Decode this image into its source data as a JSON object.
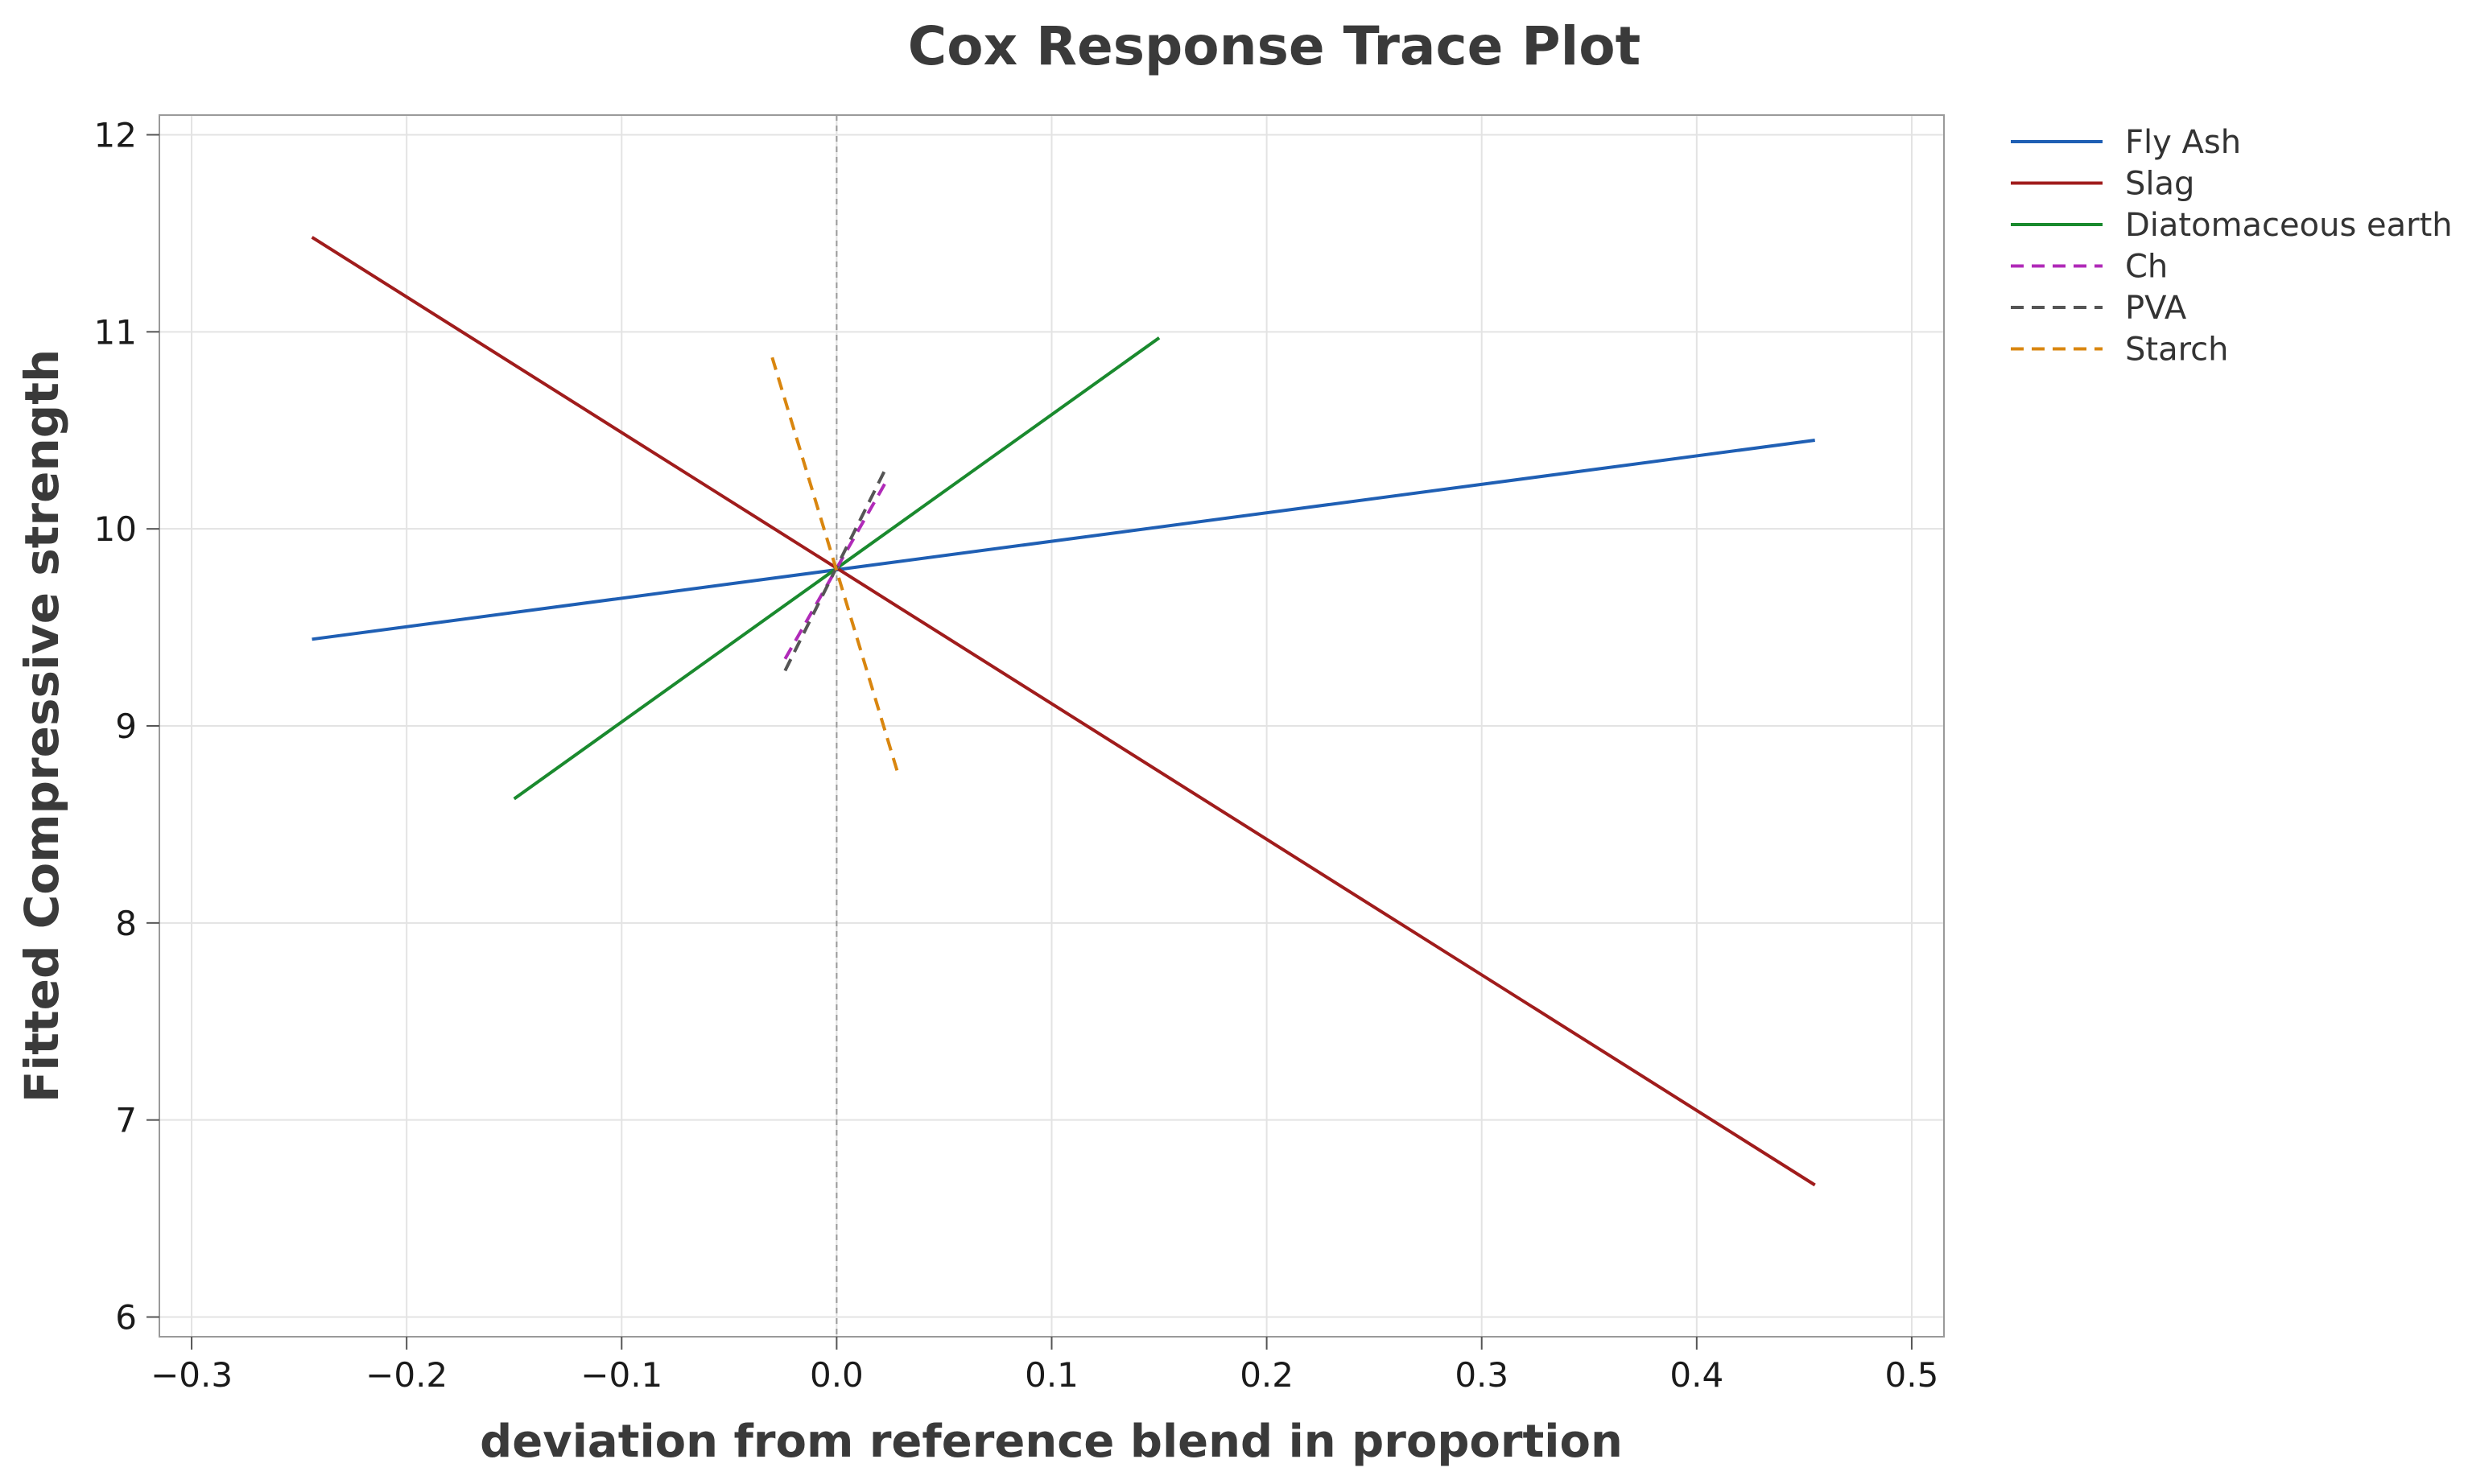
{
  "chart_data": {
    "type": "line",
    "title": "Cox Response Trace Plot",
    "xlabel": "deviation from reference blend in proportion",
    "ylabel": "Fitted Compressive strength",
    "xlim": [
      -0.315,
      0.515
    ],
    "ylim": [
      5.9,
      12.1
    ],
    "x_ticks": [
      -0.3,
      -0.2,
      -0.1,
      0.0,
      0.1,
      0.2,
      0.3,
      0.4,
      0.5
    ],
    "x_tick_labels": [
      "−0.3",
      "−0.2",
      "−0.1",
      "0.0",
      "0.1",
      "0.2",
      "0.3",
      "0.4",
      "0.5"
    ],
    "y_ticks": [
      6,
      7,
      8,
      9,
      10,
      11,
      12
    ],
    "y_tick_labels": [
      "6",
      "7",
      "8",
      "9",
      "10",
      "11",
      "12"
    ],
    "reference_line_x": 0.0,
    "grid": true,
    "legend_position": "outside-right-top",
    "series": [
      {
        "name": "Fly Ash",
        "color": "#1f5fb4",
        "dash": "solid",
        "x": [
          -0.244,
          0.455
        ],
        "y": [
          9.44,
          10.45
        ]
      },
      {
        "name": "Slag",
        "color": "#a01c1c",
        "dash": "solid",
        "x": [
          -0.244,
          0.455
        ],
        "y": [
          11.48,
          6.67
        ]
      },
      {
        "name": "Diatomaceous earth",
        "color": "#1a8a2e",
        "dash": "solid",
        "x": [
          -0.15,
          0.15
        ],
        "y": [
          8.63,
          10.97
        ]
      },
      {
        "name": "Ch",
        "color": "#b02ab8",
        "dash": "dashed",
        "x": [
          -0.024,
          0.023
        ],
        "y": [
          9.34,
          10.24
        ]
      },
      {
        "name": "PVA",
        "color": "#555555",
        "dash": "dashed",
        "x": [
          -0.024,
          0.023
        ],
        "y": [
          9.28,
          10.31
        ]
      },
      {
        "name": "Starch",
        "color": "#d9860f",
        "dash": "dashed",
        "x": [
          -0.03,
          0.029
        ],
        "y": [
          10.87,
          8.74
        ]
      }
    ]
  }
}
